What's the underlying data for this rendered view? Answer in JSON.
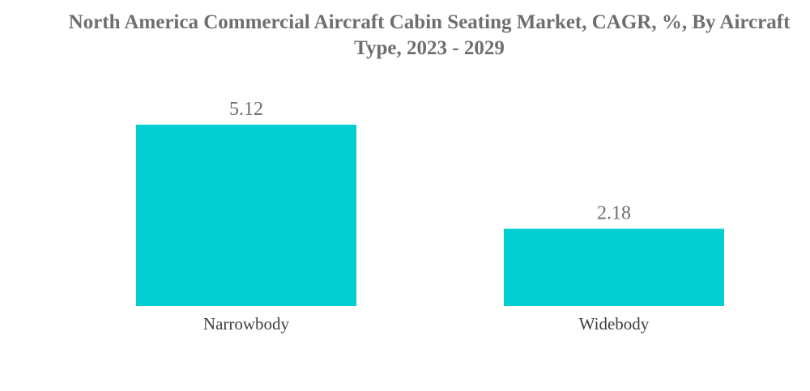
{
  "chart_data": {
    "type": "bar",
    "title": "North America Commercial Aircraft Cabin Seating Market, CAGR, %, By Aircraft Type, 2023 - 2029",
    "categories": [
      "Narrowbody",
      "Widebody"
    ],
    "values": [
      5.12,
      2.18
    ],
    "value_labels": [
      "5.12",
      "2.18"
    ],
    "xlabel": "",
    "ylabel": "",
    "ylim": [
      0,
      5.12
    ],
    "grid": false,
    "legend": "none",
    "bar_color": "#00ced1"
  }
}
